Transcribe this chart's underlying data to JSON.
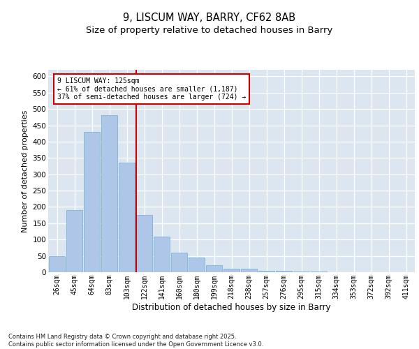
{
  "title1": "9, LISCUM WAY, BARRY, CF62 8AB",
  "title2": "Size of property relative to detached houses in Barry",
  "xlabel": "Distribution of detached houses by size in Barry",
  "ylabel": "Number of detached properties",
  "bar_color": "#aec6e8",
  "bar_edge_color": "#6baed6",
  "background_color": "#dce6f1",
  "grid_color": "#ffffff",
  "vline_color": "#cc0000",
  "annotation_text": "9 LISCUM WAY: 125sqm\n← 61% of detached houses are smaller (1,187)\n37% of semi-detached houses are larger (724) →",
  "categories": [
    "26sqm",
    "45sqm",
    "64sqm",
    "83sqm",
    "103sqm",
    "122sqm",
    "141sqm",
    "160sqm",
    "180sqm",
    "199sqm",
    "218sqm",
    "238sqm",
    "257sqm",
    "276sqm",
    "295sqm",
    "315sqm",
    "334sqm",
    "353sqm",
    "372sqm",
    "392sqm",
    "411sqm"
  ],
  "values": [
    50,
    190,
    430,
    480,
    335,
    175,
    110,
    60,
    45,
    22,
    10,
    10,
    5,
    5,
    2,
    2,
    1,
    1,
    0,
    0,
    0
  ],
  "vline_bin_index": 5,
  "ylim": [
    0,
    620
  ],
  "yticks": [
    0,
    50,
    100,
    150,
    200,
    250,
    300,
    350,
    400,
    450,
    500,
    550,
    600
  ],
  "footnote": "Contains HM Land Registry data © Crown copyright and database right 2025.\nContains public sector information licensed under the Open Government Licence v3.0."
}
